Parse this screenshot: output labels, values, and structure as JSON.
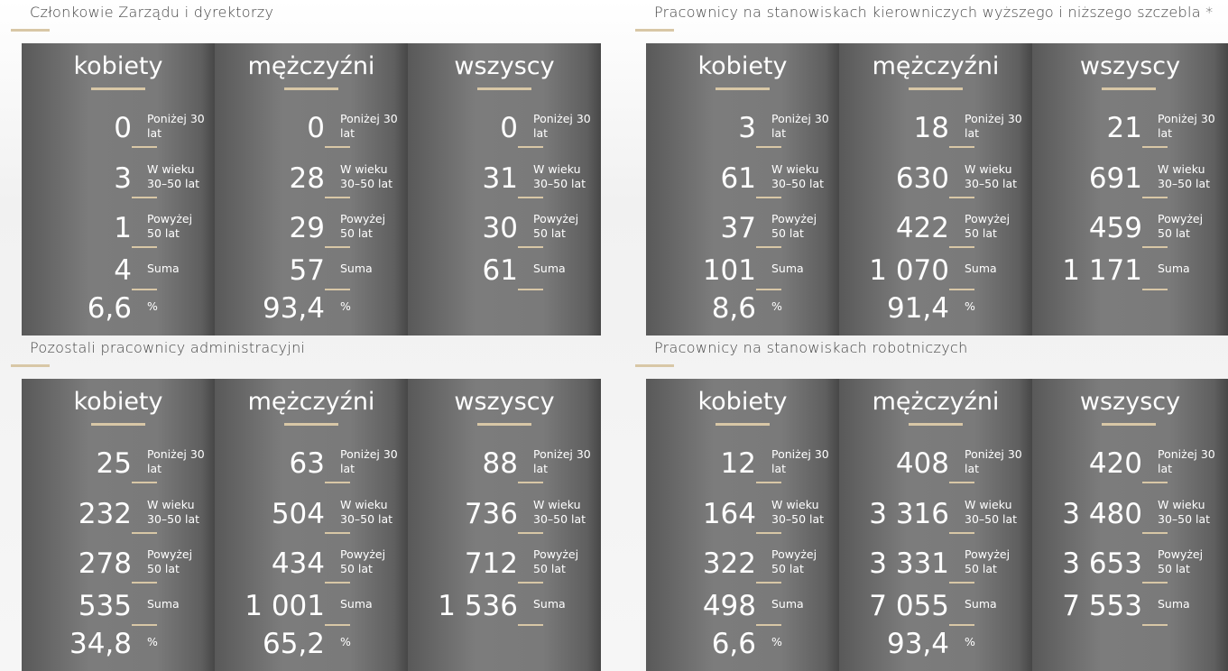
{
  "panels": [
    {
      "title": "Członkowie Zarządu i dyrektorzy",
      "columns": [
        {
          "header": "kobiety",
          "rows": [
            {
              "value": "0",
              "label": "Poniżej 30\nlat"
            },
            {
              "value": "3",
              "label": "W wieku\n30–50 lat"
            },
            {
              "value": "1",
              "label": "Powyżej\n50 lat"
            },
            {
              "value": "4",
              "label": "Suma"
            },
            {
              "value": "6,6",
              "label": "%"
            }
          ]
        },
        {
          "header": "mężczyźni",
          "rows": [
            {
              "value": "0",
              "label": "Poniżej 30\nlat"
            },
            {
              "value": "28",
              "label": "W wieku\n30–50 lat"
            },
            {
              "value": "29",
              "label": "Powyżej\n50 lat"
            },
            {
              "value": "57",
              "label": "Suma"
            },
            {
              "value": "93,4",
              "label": "%"
            }
          ]
        },
        {
          "header": "wszyscy",
          "rows": [
            {
              "value": "0",
              "label": "Poniżej 30\nlat"
            },
            {
              "value": "31",
              "label": "W wieku\n30–50 lat"
            },
            {
              "value": "30",
              "label": "Powyżej\n50 lat"
            },
            {
              "value": "61",
              "label": "Suma"
            }
          ]
        }
      ]
    },
    {
      "title": "Pracownicy na stanowiskach kierowniczych wyższego i niższego szczebla *",
      "columns": [
        {
          "header": "kobiety",
          "rows": [
            {
              "value": "3",
              "label": "Poniżej 30\nlat"
            },
            {
              "value": "61",
              "label": "W wieku\n30–50 lat"
            },
            {
              "value": "37",
              "label": "Powyżej\n50 lat"
            },
            {
              "value": "101",
              "label": "Suma"
            },
            {
              "value": "8,6",
              "label": "%"
            }
          ]
        },
        {
          "header": "mężczyźni",
          "rows": [
            {
              "value": "18",
              "label": "Poniżej 30\nlat"
            },
            {
              "value": "630",
              "label": "W wieku\n30–50 lat"
            },
            {
              "value": "422",
              "label": "Powyżej\n50 lat"
            },
            {
              "value": "1 070",
              "label": "Suma"
            },
            {
              "value": "91,4",
              "label": "%"
            }
          ]
        },
        {
          "header": "wszyscy",
          "rows": [
            {
              "value": "21",
              "label": "Poniżej 30\nlat"
            },
            {
              "value": "691",
              "label": "W wieku\n30–50 lat"
            },
            {
              "value": "459",
              "label": "Powyżej\n50 lat"
            },
            {
              "value": "1 171",
              "label": "Suma"
            }
          ]
        }
      ]
    },
    {
      "title": "Pozostali pracownicy administracyjni",
      "columns": [
        {
          "header": "kobiety",
          "rows": [
            {
              "value": "25",
              "label": "Poniżej 30\nlat"
            },
            {
              "value": "232",
              "label": "W wieku\n30–50 lat"
            },
            {
              "value": "278",
              "label": "Powyżej\n50 lat"
            },
            {
              "value": "535",
              "label": "Suma"
            },
            {
              "value": "34,8",
              "label": "%"
            }
          ]
        },
        {
          "header": "mężczyźni",
          "rows": [
            {
              "value": "63",
              "label": "Poniżej 30\nlat"
            },
            {
              "value": "504",
              "label": "W wieku\n30–50 lat"
            },
            {
              "value": "434",
              "label": "Powyżej\n50 lat"
            },
            {
              "value": "1 001",
              "label": "Suma"
            },
            {
              "value": "65,2",
              "label": "%"
            }
          ]
        },
        {
          "header": "wszyscy",
          "rows": [
            {
              "value": "88",
              "label": "Poniżej 30\nlat"
            },
            {
              "value": "736",
              "label": "W wieku\n30–50 lat"
            },
            {
              "value": "712",
              "label": "Powyżej\n50 lat"
            },
            {
              "value": "1 536",
              "label": "Suma"
            }
          ]
        }
      ]
    },
    {
      "title": "Pracownicy na stanowiskach robotniczych",
      "columns": [
        {
          "header": "kobiety",
          "rows": [
            {
              "value": "12",
              "label": "Poniżej 30\nlat"
            },
            {
              "value": "164",
              "label": "W wieku\n30–50 lat"
            },
            {
              "value": "322",
              "label": "Powyżej\n50 lat"
            },
            {
              "value": "498",
              "label": "Suma"
            },
            {
              "value": "6,6",
              "label": "%"
            }
          ]
        },
        {
          "header": "mężczyźni",
          "rows": [
            {
              "value": "408",
              "label": "Poniżej 30\nlat"
            },
            {
              "value": "3 316",
              "label": "W wieku\n30–50 lat"
            },
            {
              "value": "3 331",
              "label": "Powyżej\n50 lat"
            },
            {
              "value": "7 055",
              "label": "Suma"
            },
            {
              "value": "93,4",
              "label": "%"
            }
          ]
        },
        {
          "header": "wszyscy",
          "rows": [
            {
              "value": "420",
              "label": "Poniżej 30\nlat"
            },
            {
              "value": "3 480",
              "label": "W wieku\n30–50 lat"
            },
            {
              "value": "3 653",
              "label": "Powyżej\n50 lat"
            },
            {
              "value": "7 553",
              "label": "Suma"
            }
          ]
        }
      ]
    }
  ]
}
